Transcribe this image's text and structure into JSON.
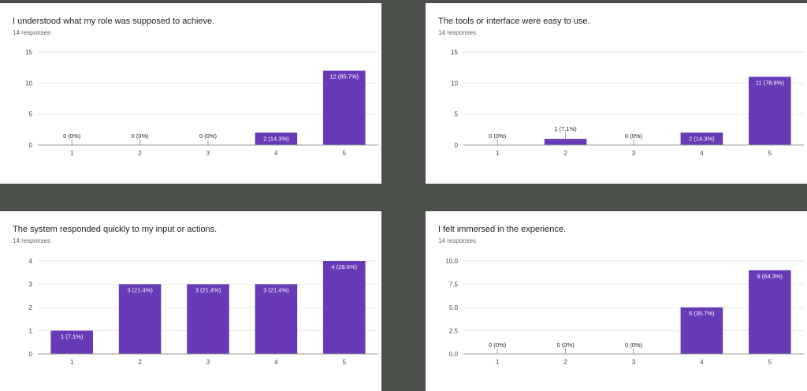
{
  "style": {
    "bar_color": "#673ab7",
    "gridline_color": "#e6e6e6",
    "axis_color": "#999999",
    "background": "#4a5149"
  },
  "panels": [
    {
      "title": "I understood what my role was supposed to achieve.",
      "responses": "14 responses"
    },
    {
      "title": "The tools or interface were easy to use.",
      "responses": "14 responses"
    },
    {
      "title": "The system responded quickly to my input or actions.",
      "responses": "14 responses"
    },
    {
      "title": "I felt immersed in the experience.",
      "responses": "14 responses"
    }
  ],
  "chart_data": [
    {
      "type": "bar",
      "title": "I understood what my role was supposed to achieve.",
      "categories": [
        "1",
        "2",
        "3",
        "4",
        "5"
      ],
      "values": [
        0,
        0,
        0,
        2,
        12
      ],
      "data_labels": [
        "0 (0%)",
        "0 (0%)",
        "0 (0%)",
        "2 (14.3%)",
        "12 (85.7%)"
      ],
      "yticks": [
        "0",
        "5",
        "10",
        "15"
      ],
      "ylim": [
        0,
        15
      ],
      "grid": true
    },
    {
      "type": "bar",
      "title": "The tools or interface were easy to use.",
      "categories": [
        "1",
        "2",
        "3",
        "4",
        "5"
      ],
      "values": [
        0,
        1,
        0,
        2,
        11
      ],
      "data_labels": [
        "0 (0%)",
        "1 (7.1%)",
        "0 (0%)",
        "2 (14.3%)",
        "11 (78.6%)"
      ],
      "yticks": [
        "0",
        "5",
        "10",
        "15"
      ],
      "ylim": [
        0,
        15
      ],
      "grid": true
    },
    {
      "type": "bar",
      "title": "The system responded quickly to my input or actions.",
      "categories": [
        "1",
        "2",
        "3",
        "4",
        "5"
      ],
      "values": [
        1,
        3,
        3,
        3,
        4
      ],
      "data_labels": [
        "1 (7.1%)",
        "3 (21.4%)",
        "3 (21.4%)",
        "3 (21.4%)",
        "4 (28.6%)"
      ],
      "yticks": [
        "0",
        "1",
        "2",
        "3",
        "4"
      ],
      "ylim": [
        0,
        4
      ],
      "grid": true
    },
    {
      "type": "bar",
      "title": "I felt immersed in the experience.",
      "categories": [
        "1",
        "2",
        "3",
        "4",
        "5"
      ],
      "values": [
        0,
        0,
        0,
        5,
        9
      ],
      "data_labels": [
        "0 (0%)",
        "0 (0%)",
        "0 (0%)",
        "5 (35.7%)",
        "9 (64.3%)"
      ],
      "yticks": [
        "0.0",
        "2.5",
        "5.0",
        "7.5",
        "10.0"
      ],
      "ylim": [
        0,
        10
      ],
      "grid": true
    }
  ]
}
